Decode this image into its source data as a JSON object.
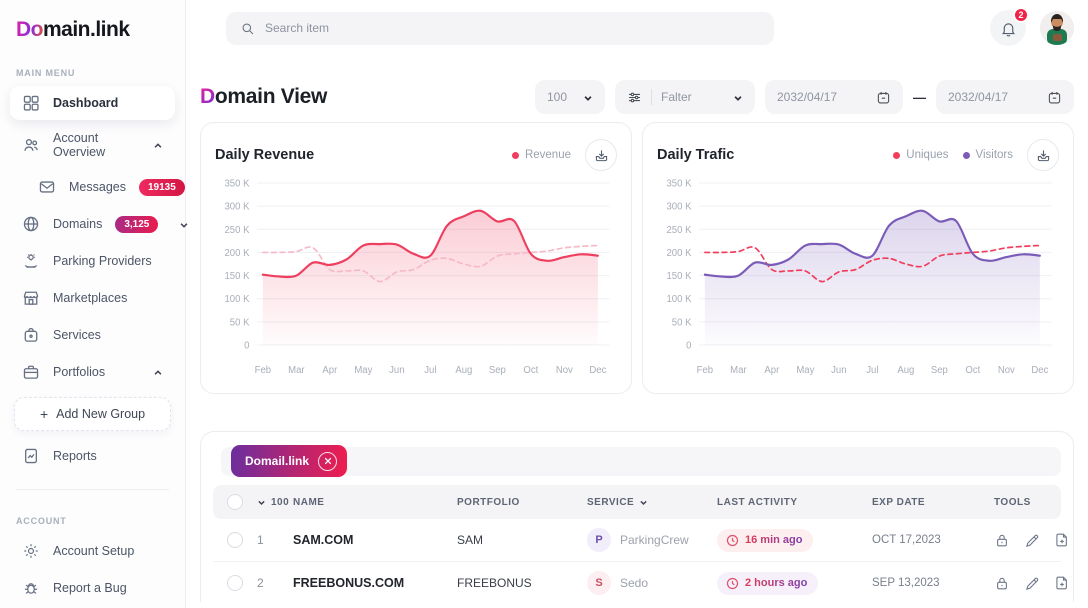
{
  "brand": {
    "logo_accent": "Do",
    "logo_rest": "main.link"
  },
  "topbar": {
    "search_placeholder": "Search item",
    "notification_count": "2"
  },
  "sidebar": {
    "main_menu_label": "MAIN MENU",
    "account_label": "ACCOUNT",
    "dashboard": "Dashboard",
    "account_overview": "Account Overview",
    "messages": "Messages",
    "messages_badge": "19135",
    "domains": "Domains",
    "domains_badge": "3,125",
    "parking_providers": "Parking Providers",
    "marketplaces": "Marketplaces",
    "services": "Services",
    "portfolios": "Portfolios",
    "add_new_group": "Add New Group",
    "add_new_group_plus": "+",
    "reports": "Reports",
    "account_setup": "Account Setup",
    "report_a_bug": "Report a Bug"
  },
  "header": {
    "title_accent": "D",
    "title_rest": "omain View",
    "page_size": "100",
    "filter_label": "Falter",
    "date_from": "2032/04/17",
    "date_to": "2032/04/17",
    "date_separator": "—"
  },
  "colors": {
    "accent_purple": "#8a2be2",
    "accent_red": "#ef1d4e"
  },
  "chart_data": [
    {
      "type": "area",
      "title": "Daily Revenue",
      "x_labels": [
        "Feb",
        "Mar",
        "Apr",
        "May",
        "Jun",
        "Jul",
        "Aug",
        "Sep",
        "Oct",
        "Nov",
        "Dec"
      ],
      "x_step_months": 0.5,
      "y_ticks": [
        "350 K",
        "300 K",
        "250 K",
        "200 K",
        "150 K",
        "100 K",
        "50 K",
        "0"
      ],
      "ylim": [
        0,
        350
      ],
      "unit": "K",
      "legend": [
        {
          "label": "Revenue",
          "color": "#ee3f5f"
        }
      ],
      "series": [
        {
          "name": "Revenue",
          "line": "solid",
          "fill": true,
          "color": "#ee3f5f",
          "values": [
            152,
            148,
            150,
            178,
            173,
            185,
            215,
            218,
            217,
            197,
            193,
            258,
            278,
            290,
            267,
            268,
            197,
            182,
            190,
            196,
            193
          ]
        },
        {
          "name": "Comparison",
          "line": "dashed",
          "fill": false,
          "color": "#f6b9c7",
          "values": [
            200,
            200,
            202,
            210,
            163,
            160,
            160,
            137,
            158,
            163,
            183,
            187,
            175,
            170,
            192,
            197,
            200,
            203,
            210,
            213,
            215
          ]
        }
      ]
    },
    {
      "type": "area",
      "title": "Daily Trafic",
      "x_labels": [
        "Feb",
        "Mar",
        "Apr",
        "May",
        "Jun",
        "Jul",
        "Aug",
        "Sep",
        "Oct",
        "Nov",
        "Dec"
      ],
      "x_step_months": 0.5,
      "y_ticks": [
        "350 K",
        "300 K",
        "250 K",
        "200 K",
        "150 K",
        "100 K",
        "50 K",
        "0"
      ],
      "ylim": [
        0,
        350
      ],
      "unit": "K",
      "legend": [
        {
          "label": "Uniques",
          "color": "#f23d5c"
        },
        {
          "label": "Visitors",
          "color": "#7a5cb8"
        }
      ],
      "series": [
        {
          "name": "Visitors",
          "line": "solid",
          "fill": true,
          "color": "#7a5cb8",
          "values": [
            152,
            148,
            150,
            178,
            173,
            185,
            215,
            218,
            217,
            197,
            193,
            258,
            278,
            290,
            267,
            268,
            197,
            182,
            190,
            196,
            193
          ]
        },
        {
          "name": "Uniques",
          "line": "dashed",
          "fill": false,
          "color": "#f23d5c",
          "values": [
            200,
            200,
            202,
            210,
            163,
            160,
            160,
            137,
            158,
            163,
            183,
            187,
            175,
            170,
            192,
            197,
            200,
            203,
            210,
            213,
            215
          ]
        }
      ]
    }
  ],
  "table": {
    "tag": "Domail.link",
    "page_size": "100",
    "columns": {
      "name": "NAME",
      "portfolio": "PORTFOLIO",
      "service": "SERVICE",
      "last_activity": "LAST ACTIVITY",
      "exp_date": "EXP DATE",
      "tools": "TOOLS"
    },
    "rows": [
      {
        "num": "1",
        "name": "SAM.COM",
        "portfolio": "SAM",
        "service_initial": "P",
        "service": "ParkingCrew",
        "svc_bg": "#f1edfa",
        "svc_color": "#6d4fae",
        "last_activity": "16 min ago",
        "badge_bg": "#fdeef0",
        "exp_date": "OCT 17,2023"
      },
      {
        "num": "2",
        "name": "FREEBONUS.COM",
        "portfolio": "FREEBONUS",
        "service_initial": "S",
        "service": "Sedo",
        "svc_bg": "#fdeef2",
        "svc_color": "#c94f63",
        "last_activity": "2 hours ago",
        "badge_bg": "#f6f0fa",
        "exp_date": "SEP 13,2023"
      }
    ]
  }
}
